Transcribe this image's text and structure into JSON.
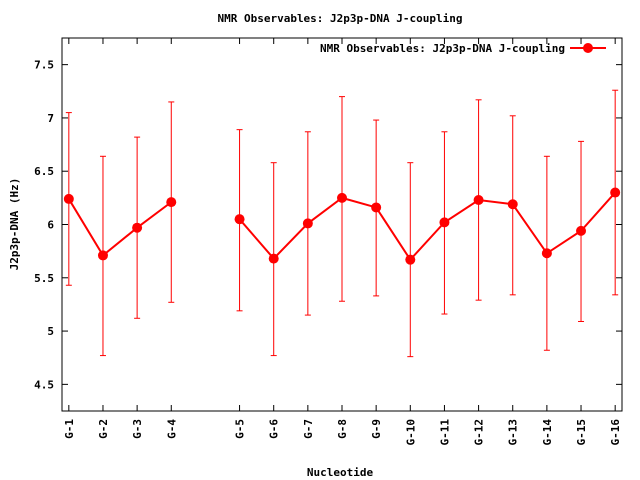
{
  "chart_data": {
    "type": "line",
    "title": "NMR Observables: J2p3p-DNA J-coupling",
    "xlabel": "Nucleotide",
    "ylabel": "J2p3p-DNA (Hz)",
    "ylim": [
      4.25,
      7.75
    ],
    "yticks": [
      4.5,
      5,
      5.5,
      6,
      6.5,
      7,
      7.5
    ],
    "ytick_labels": [
      "4.5",
      "5",
      "5.5",
      "6",
      "6.5",
      "7",
      "7.5"
    ],
    "xlim": [
      0.8,
      17.2
    ],
    "grid": false,
    "legend_position": "top-right",
    "series": [
      {
        "name": "NMR Observables: J2p3p-DNA J-coupling",
        "color": "#ff0000",
        "segments": [
          [
            {
              "x": 1,
              "label": "G-1",
              "y": 6.24,
              "err_low": 5.43,
              "err_high": 7.05
            },
            {
              "x": 2,
              "label": "G-2",
              "y": 5.71,
              "err_low": 4.77,
              "err_high": 6.64
            },
            {
              "x": 3,
              "label": "G-3",
              "y": 5.97,
              "err_low": 5.12,
              "err_high": 6.82
            },
            {
              "x": 4,
              "label": "G-4",
              "y": 6.21,
              "err_low": 5.27,
              "err_high": 7.15
            }
          ],
          [
            {
              "x": 6,
              "label": "G-5",
              "y": 6.05,
              "err_low": 5.19,
              "err_high": 6.89
            },
            {
              "x": 7,
              "label": "G-6",
              "y": 5.68,
              "err_low": 4.77,
              "err_high": 6.58
            },
            {
              "x": 8,
              "label": "G-7",
              "y": 6.01,
              "err_low": 5.15,
              "err_high": 6.87
            },
            {
              "x": 9,
              "label": "G-8",
              "y": 6.25,
              "err_low": 5.28,
              "err_high": 7.2
            },
            {
              "x": 10,
              "label": "G-9",
              "y": 6.16,
              "err_low": 5.33,
              "err_high": 6.98
            },
            {
              "x": 11,
              "label": "G-10",
              "y": 5.67,
              "err_low": 4.76,
              "err_high": 6.58
            },
            {
              "x": 12,
              "label": "G-11",
              "y": 6.02,
              "err_low": 5.16,
              "err_high": 6.87
            },
            {
              "x": 13,
              "label": "G-12",
              "y": 6.23,
              "err_low": 5.29,
              "err_high": 7.17
            },
            {
              "x": 14,
              "label": "G-13",
              "y": 6.19,
              "err_low": 5.34,
              "err_high": 7.02
            },
            {
              "x": 15,
              "label": "G-14",
              "y": 5.73,
              "err_low": 4.82,
              "err_high": 6.64
            },
            {
              "x": 16,
              "label": "G-15",
              "y": 5.94,
              "err_low": 5.09,
              "err_high": 6.78
            },
            {
              "x": 17,
              "label": "G-16",
              "y": 6.3,
              "err_low": 5.34,
              "err_high": 7.26
            }
          ]
        ]
      }
    ]
  }
}
